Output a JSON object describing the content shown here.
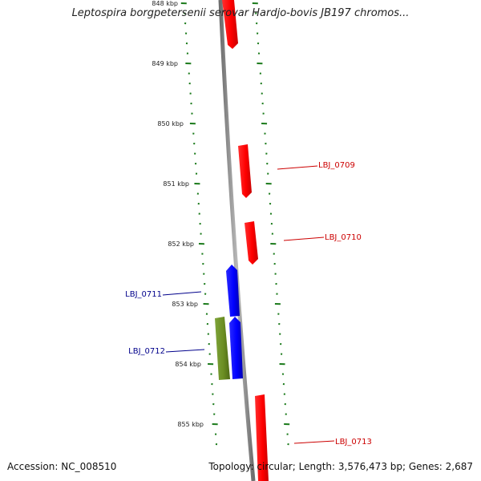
{
  "title": "Leptospira borgpetersenii serovar Hardjo-bovis JB197 chromos...",
  "footer": {
    "accession": "Accession: NC_008510",
    "summary": "Topology: circular; Length: 3,576,473 bp; Genes: 2,687"
  },
  "colors": {
    "backbone": "#8c8c8c",
    "tick": "#1a7a1a",
    "forward_gene": "#ff0000",
    "reverse_gene": "#0000ff",
    "other_gene": "#6b8e23",
    "label_forward": "#cc0000",
    "label_reverse": "#00008b"
  },
  "scale_labels": [
    "848 kbp",
    "849 kbp",
    "850 kbp",
    "851 kbp",
    "852 kbp",
    "853 kbp",
    "854 kbp",
    "855 kbp"
  ],
  "genes": [
    {
      "name": "",
      "strand": "forward",
      "color": "forward_gene"
    },
    {
      "name": "LBJ_0709",
      "strand": "forward",
      "color": "forward_gene"
    },
    {
      "name": "LBJ_0710",
      "strand": "forward",
      "color": "forward_gene"
    },
    {
      "name": "LBJ_0711",
      "strand": "reverse",
      "color": "reverse_gene"
    },
    {
      "name": "LBJ_0712",
      "strand": "reverse",
      "color": "reverse_gene"
    },
    {
      "name": "",
      "strand": "reverse",
      "color": "other_gene"
    },
    {
      "name": "LBJ_0713",
      "strand": "forward",
      "color": "forward_gene"
    }
  ]
}
